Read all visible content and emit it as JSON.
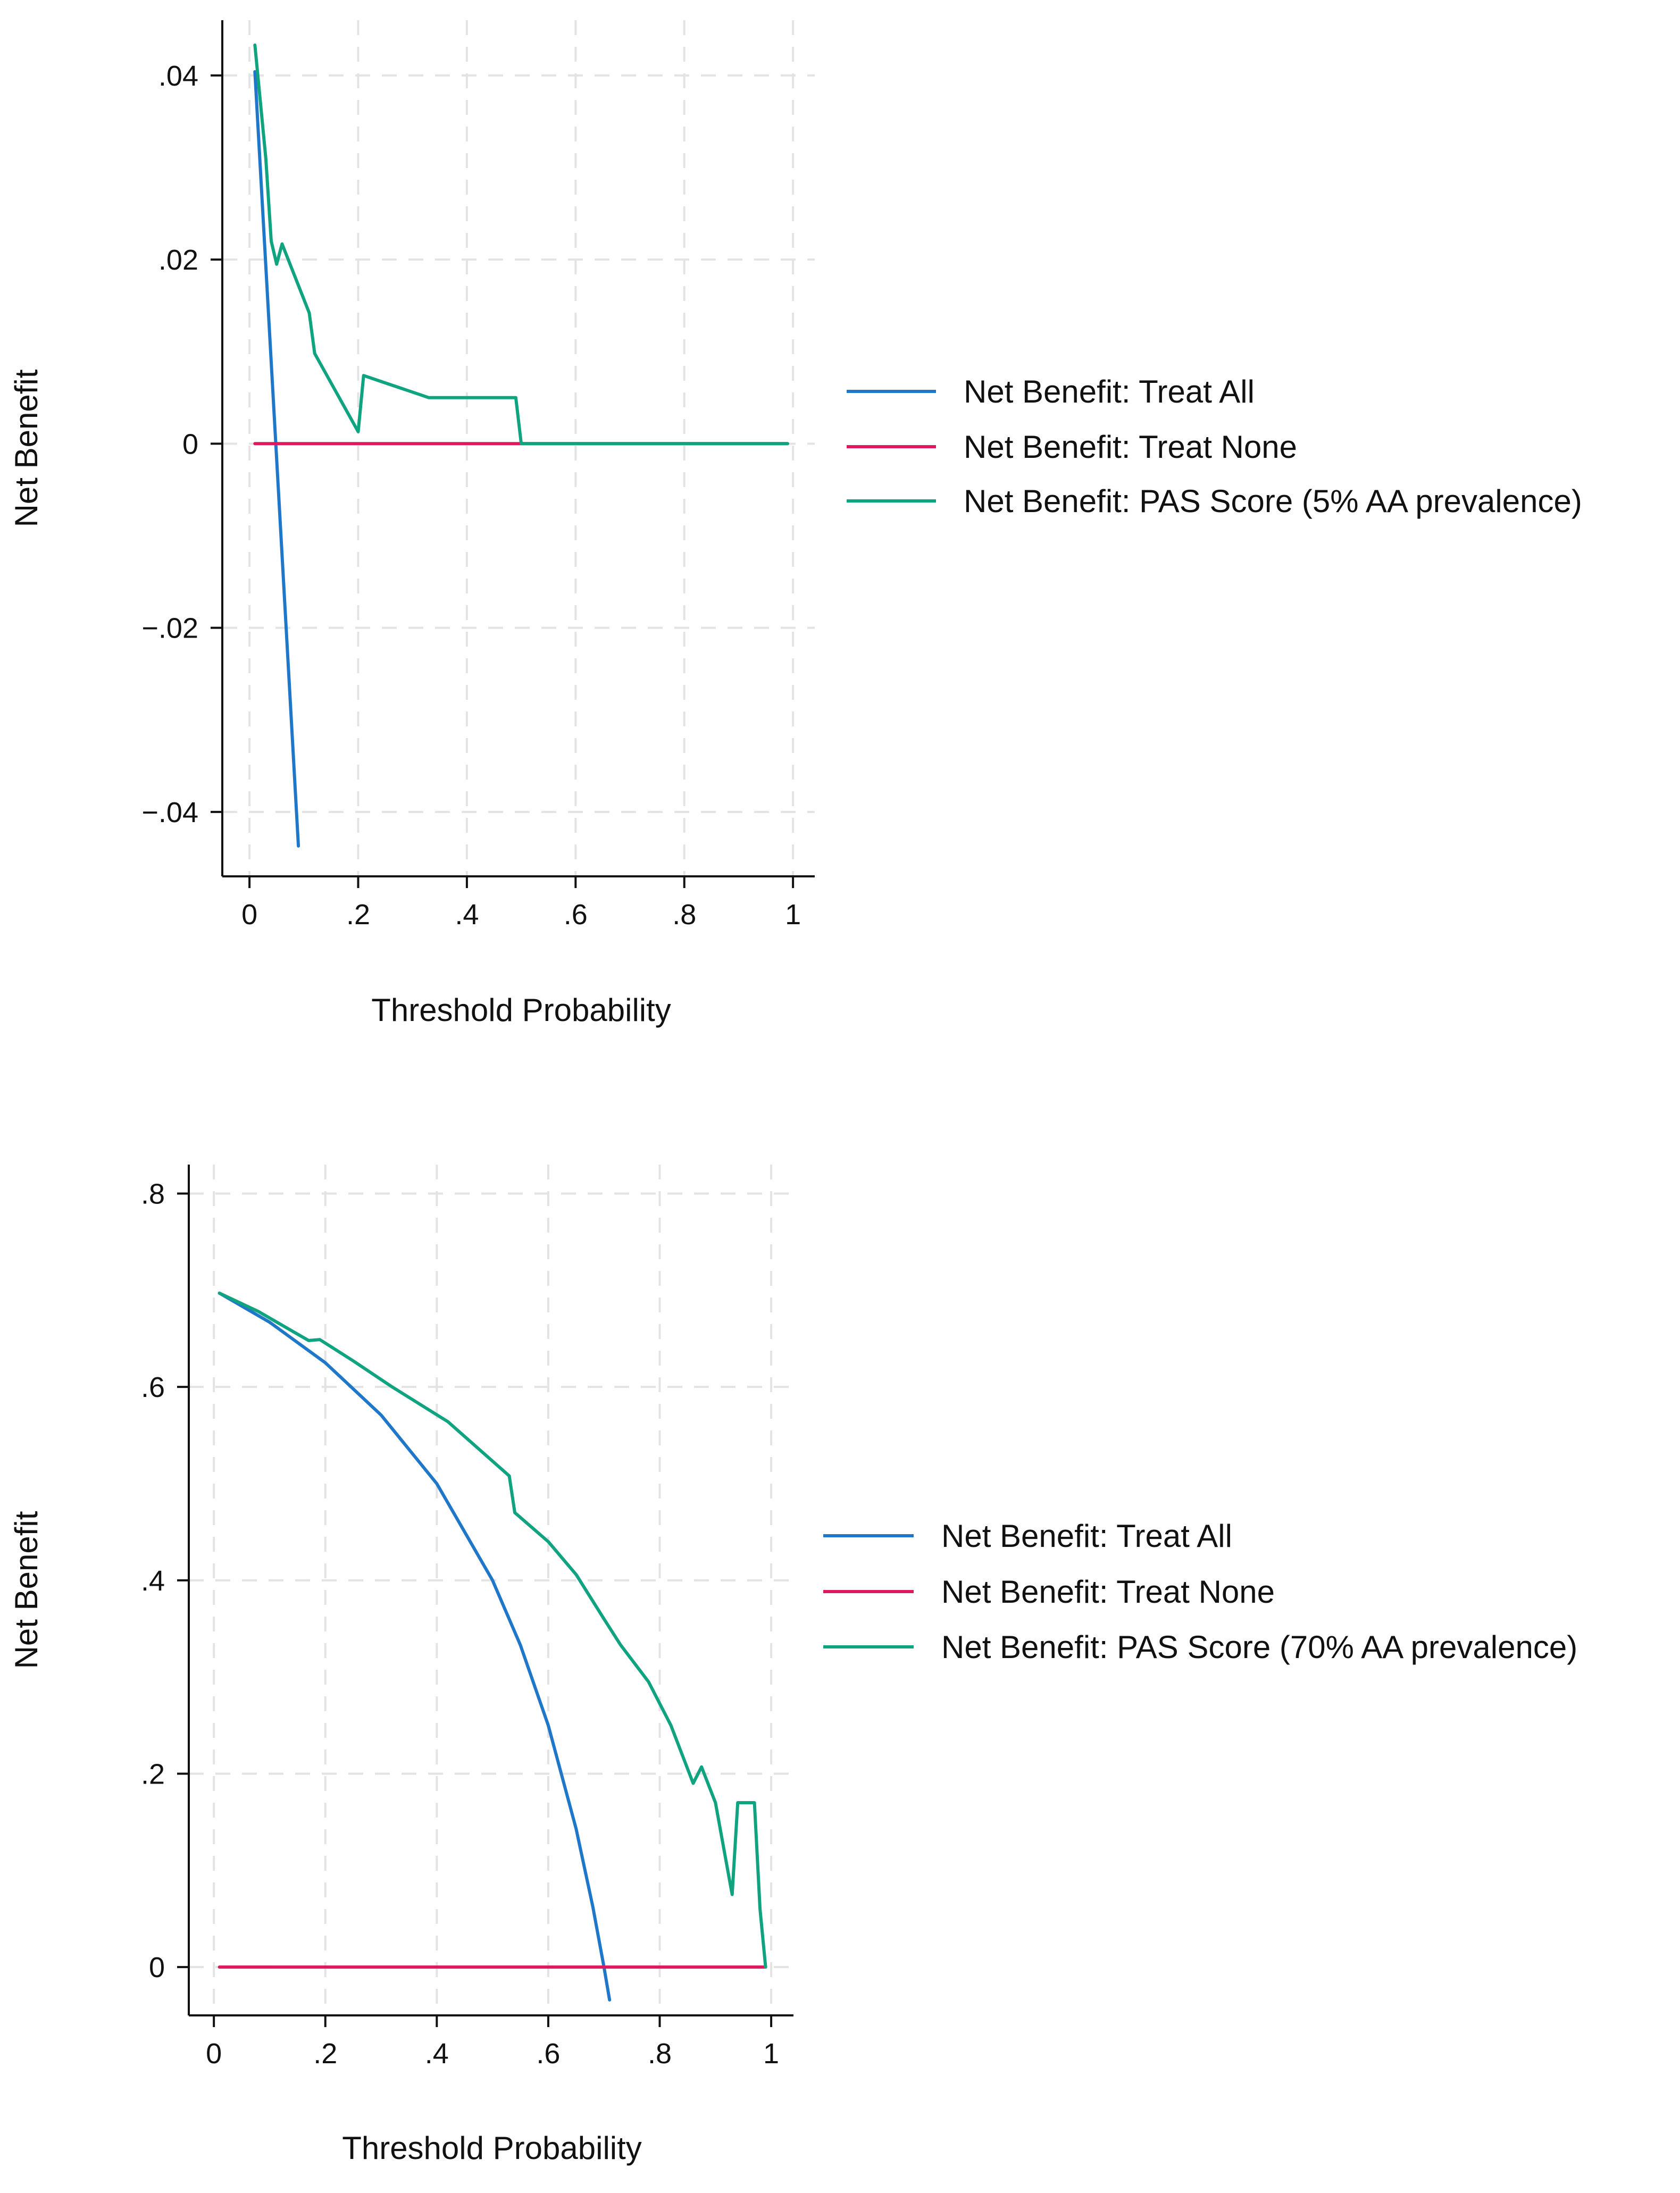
{
  "colors": {
    "treat_all": "#1f77c9",
    "treat_none": "#e0195f",
    "pas_score": "#10a37f",
    "grid": "#e3e3e3",
    "axis": "#111111"
  },
  "chart_data": [
    {
      "type": "line",
      "xlabel": "Threshold Probability",
      "ylabel": "Net Benefit",
      "xlim": [
        -0.05,
        1.04
      ],
      "ylim": [
        -0.047,
        0.046
      ],
      "x_ticks": [
        0,
        0.2,
        0.4,
        0.6,
        0.8,
        1
      ],
      "x_tick_labels": [
        "0",
        ".2",
        ".4",
        ".6",
        ".8",
        "1"
      ],
      "y_ticks": [
        0.04,
        0.02,
        0,
        -0.02,
        -0.04
      ],
      "y_tick_labels": [
        ".04",
        ".02",
        "0",
        "−.02",
        "−.04"
      ],
      "grid": true,
      "legend_position": "right",
      "series": [
        {
          "name": "Net Benefit: Treat All",
          "color_key": "treat_all",
          "points": [
            [
              0.01,
              0.0404
            ],
            [
              0.09,
              -0.0437
            ]
          ]
        },
        {
          "name": "Net Benefit: Treat None",
          "color_key": "treat_none",
          "points": [
            [
              0.01,
              0.0
            ],
            [
              0.99,
              0.0
            ]
          ]
        },
        {
          "name": "Net Benefit: PAS Score (5% AA prevalence)",
          "color_key": "pas_score",
          "points": [
            [
              0.01,
              0.0433
            ],
            [
              0.03,
              0.031
            ],
            [
              0.04,
              0.022
            ],
            [
              0.05,
              0.0195
            ],
            [
              0.06,
              0.0217
            ],
            [
              0.11,
              0.0142
            ],
            [
              0.12,
              0.0098
            ],
            [
              0.2,
              0.0013
            ],
            [
              0.21,
              0.0074
            ],
            [
              0.25,
              0.0066
            ],
            [
              0.33,
              0.005
            ],
            [
              0.49,
              0.005
            ],
            [
              0.5,
              0.0
            ],
            [
              0.99,
              0.0
            ]
          ]
        }
      ]
    },
    {
      "type": "line",
      "xlabel": "Threshold Probability",
      "ylabel": "Net Benefit",
      "xlim": [
        -0.045,
        1.04
      ],
      "ylim": [
        -0.05,
        0.83
      ],
      "x_ticks": [
        0,
        0.2,
        0.4,
        0.6,
        0.8,
        1
      ],
      "x_tick_labels": [
        "0",
        ".2",
        ".4",
        ".6",
        ".8",
        "1"
      ],
      "y_ticks": [
        0.8,
        0.6,
        0.4,
        0.2,
        0
      ],
      "y_tick_labels": [
        ".8",
        ".6",
        ".4",
        ".2",
        "0"
      ],
      "grid": true,
      "legend_position": "right",
      "series": [
        {
          "name": "Net Benefit: Treat All",
          "color_key": "treat_all",
          "points": [
            [
              0.01,
              0.697
            ],
            [
              0.1,
              0.667
            ],
            [
              0.2,
              0.625
            ],
            [
              0.3,
              0.571
            ],
            [
              0.4,
              0.5
            ],
            [
              0.5,
              0.4
            ],
            [
              0.55,
              0.333
            ],
            [
              0.6,
              0.25
            ],
            [
              0.65,
              0.143
            ],
            [
              0.68,
              0.0625
            ],
            [
              0.7,
              0.0
            ],
            [
              0.71,
              -0.034
            ]
          ]
        },
        {
          "name": "Net Benefit: Treat None",
          "color_key": "treat_none",
          "points": [
            [
              0.01,
              0.0
            ],
            [
              0.99,
              0.0
            ]
          ]
        },
        {
          "name": "Net Benefit: PAS Score (70% AA prevalence)",
          "color_key": "pas_score",
          "points": [
            [
              0.01,
              0.697
            ],
            [
              0.08,
              0.678
            ],
            [
              0.17,
              0.648
            ],
            [
              0.19,
              0.649
            ],
            [
              0.25,
              0.627
            ],
            [
              0.32,
              0.6
            ],
            [
              0.42,
              0.564
            ],
            [
              0.53,
              0.508
            ],
            [
              0.54,
              0.47
            ],
            [
              0.6,
              0.44
            ],
            [
              0.65,
              0.406
            ],
            [
              0.7,
              0.36
            ],
            [
              0.73,
              0.333
            ],
            [
              0.78,
              0.295
            ],
            [
              0.82,
              0.25
            ],
            [
              0.86,
              0.19
            ],
            [
              0.875,
              0.207
            ],
            [
              0.9,
              0.17
            ],
            [
              0.93,
              0.075
            ],
            [
              0.94,
              0.17
            ],
            [
              0.97,
              0.17
            ],
            [
              0.98,
              0.06
            ],
            [
              0.99,
              0.0
            ]
          ]
        }
      ]
    }
  ]
}
